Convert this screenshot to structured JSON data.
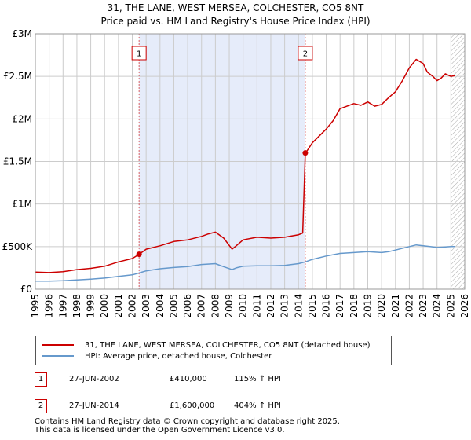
{
  "colors": {
    "property_line": "#cc0000",
    "hpi_line": "#6699cc",
    "shade": "#e6ecfa",
    "future_hatch": "#999999",
    "grid": "#cccccc"
  },
  "chart_data": {
    "type": "line",
    "title": "31, THE LANE, WEST MERSEA, COLCHESTER, CO5 8NT",
    "subtitle": "Price paid vs. HM Land Registry's House Price Index (HPI)",
    "xlabel": "",
    "ylabel": "",
    "xlim": [
      1995,
      2026
    ],
    "ylim": [
      0,
      3000000
    ],
    "x_ticks": [
      "1995",
      "1996",
      "1997",
      "1998",
      "1999",
      "2000",
      "2001",
      "2002",
      "2003",
      "2004",
      "2005",
      "2006",
      "2007",
      "2008",
      "2009",
      "2010",
      "2011",
      "2012",
      "2013",
      "2014",
      "2015",
      "2016",
      "2017",
      "2018",
      "2019",
      "2020",
      "2021",
      "2022",
      "2023",
      "2024",
      "2025",
      "2026"
    ],
    "y_ticks": [
      {
        "value": 0,
        "label": "£0"
      },
      {
        "value": 500000,
        "label": "£500K"
      },
      {
        "value": 1000000,
        "label": "£1M"
      },
      {
        "value": 1500000,
        "label": "£1.5M"
      },
      {
        "value": 2000000,
        "label": "£2M"
      },
      {
        "value": 2500000,
        "label": "£2.5M"
      },
      {
        "value": 3000000,
        "label": "£3M"
      }
    ],
    "grid": true,
    "shaded_period": [
      2002.49,
      2014.49
    ],
    "forecast_start": 2025.0,
    "series": [
      {
        "name": "31, THE LANE, WEST MERSEA, COLCHESTER, CO5 8NT (detached house)",
        "color": "#cc0000",
        "x": [
          1995,
          1996,
          1997,
          1998,
          1999,
          2000,
          2001,
          2002,
          2002.49,
          2003,
          2004,
          2005,
          2006,
          2007,
          2007.5,
          2008,
          2008.6,
          2009.2,
          2009.5,
          2010,
          2011,
          2012,
          2013,
          2014,
          2014.3,
          2014.49,
          2014.6,
          2015,
          2016,
          2016.5,
          2017,
          2018,
          2018.5,
          2019,
          2019.5,
          2020,
          2020.5,
          2021,
          2021.5,
          2022,
          2022.5,
          2023,
          2023.3,
          2023.7,
          2024,
          2024.3,
          2024.6,
          2025,
          2025.3
        ],
        "values": [
          200000,
          195000,
          205000,
          230000,
          245000,
          270000,
          320000,
          360000,
          410000,
          470000,
          510000,
          560000,
          580000,
          620000,
          650000,
          670000,
          600000,
          470000,
          510000,
          580000,
          610000,
          600000,
          610000,
          640000,
          660000,
          1600000,
          1620000,
          1720000,
          1880000,
          1980000,
          2120000,
          2180000,
          2160000,
          2200000,
          2150000,
          2170000,
          2250000,
          2320000,
          2450000,
          2600000,
          2700000,
          2650000,
          2550000,
          2500000,
          2450000,
          2480000,
          2530000,
          2500000,
          2510000
        ]
      },
      {
        "name": "HPI: Average price, detached house, Colchester",
        "color": "#6699cc",
        "x": [
          1995,
          1996,
          1997,
          1998,
          1999,
          2000,
          2001,
          2002,
          2002.49,
          2003,
          2004,
          2005,
          2006,
          2007,
          2008,
          2008.5,
          2009.2,
          2009.5,
          2010,
          2011,
          2012,
          2013,
          2014,
          2014.49,
          2015,
          2016,
          2017,
          2018,
          2019,
          2020,
          2020.5,
          2021,
          2022,
          2022.5,
          2023,
          2023.5,
          2024,
          2024.5,
          2025,
          2025.3
        ],
        "values": [
          95000,
          95000,
          100000,
          108000,
          118000,
          130000,
          150000,
          168000,
          190000,
          215000,
          240000,
          255000,
          265000,
          290000,
          300000,
          270000,
          230000,
          250000,
          270000,
          275000,
          275000,
          280000,
          300000,
          320000,
          350000,
          390000,
          420000,
          430000,
          440000,
          430000,
          440000,
          460000,
          500000,
          520000,
          510000,
          500000,
          490000,
          495000,
          500000,
          500000
        ]
      }
    ],
    "markers": [
      {
        "label": "1",
        "x": 2002.49,
        "value": 410000
      },
      {
        "label": "2",
        "x": 2014.49,
        "value": 1600000
      }
    ]
  },
  "legend": {
    "items": [
      {
        "label": "31, THE LANE, WEST MERSEA, COLCHESTER, CO5 8NT (detached house)",
        "color": "#cc0000"
      },
      {
        "label": "HPI: Average price, detached house, Colchester",
        "color": "#6699cc"
      }
    ]
  },
  "sales": [
    {
      "num": "1",
      "date": "27-JUN-2002",
      "price": "£410,000",
      "hpi": "115% ↑ HPI"
    },
    {
      "num": "2",
      "date": "27-JUN-2014",
      "price": "£1,600,000",
      "hpi": "404% ↑ HPI"
    }
  ],
  "footer": {
    "line1": "Contains HM Land Registry data © Crown copyright and database right 2025.",
    "line2": "This data is licensed under the Open Government Licence v3.0."
  }
}
